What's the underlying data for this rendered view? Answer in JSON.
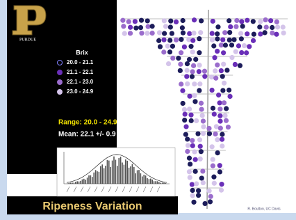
{
  "logo": {
    "text": "PURDUE"
  },
  "legend": {
    "title": "Brix",
    "items": [
      {
        "label": "20.0 - 21.1",
        "color": "#1c1c5a",
        "hollow": true
      },
      {
        "label": "21.1 - 22.1",
        "color": "#6a2fb8"
      },
      {
        "label": "22.1 - 23.0",
        "color": "#9a6ccc"
      },
      {
        "label": "23.0 - 24.9",
        "color": "#d4c4ea"
      }
    ]
  },
  "stats": {
    "range": "Range: 20.0 - 24.9",
    "mean": "Mean: 22.1 +/- 0.9"
  },
  "title": "Ripeness Variation",
  "credit": "R. Boulton, UC Davis"
}
